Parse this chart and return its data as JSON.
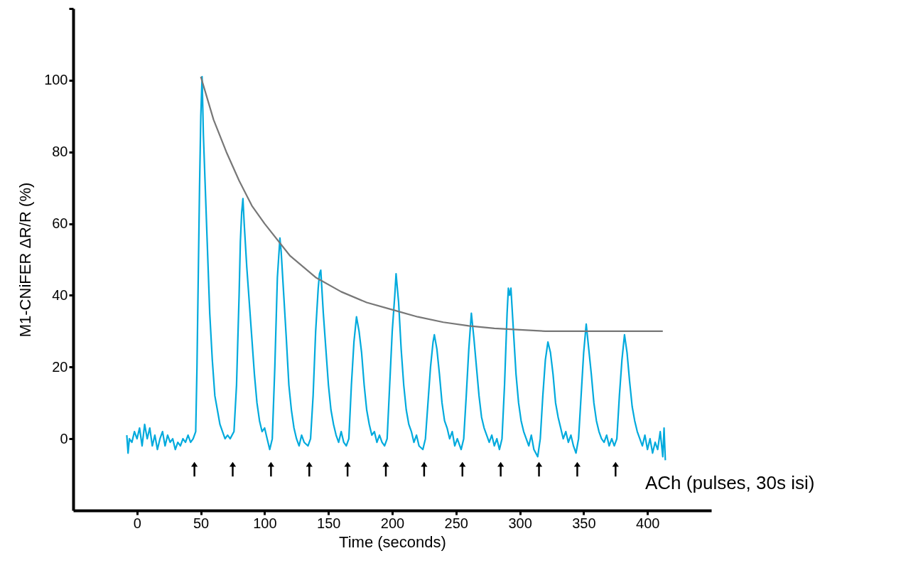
{
  "chart_data": {
    "type": "line",
    "xlabel": "Time (seconds)",
    "ylabel": "M1-CNiFER ΔR/R (%)",
    "xlim": [
      -50,
      450
    ],
    "ylim": [
      -20,
      120
    ],
    "xticks": [
      0,
      50,
      100,
      150,
      200,
      250,
      300,
      350,
      400
    ],
    "yticks": [
      0,
      20,
      40,
      60,
      80,
      100,
      {
        "value": 120,
        "label": null
      }
    ],
    "grid": false,
    "annotations": [
      "ACh (pulses, 30s isi)"
    ],
    "series": [
      {
        "color": "#00aadd",
        "marker": "none",
        "line_style": "solid",
        "x": [
          -8,
          -7,
          -6,
          -4,
          -2,
          0,
          2,
          4,
          6,
          8,
          10,
          12,
          14,
          16,
          18,
          20,
          22,
          24,
          26,
          28,
          30,
          32,
          34,
          36,
          38,
          40,
          42,
          44,
          46,
          47,
          49,
          50,
          51,
          52,
          53,
          55,
          57,
          59,
          61,
          63,
          65,
          67,
          69,
          71,
          73,
          76,
          78,
          80,
          81,
          82,
          83,
          84,
          86,
          88,
          90,
          92,
          94,
          96,
          98,
          100,
          102,
          104,
          106,
          108,
          110,
          112,
          113,
          115,
          117,
          119,
          121,
          123,
          125,
          127,
          129,
          131,
          134,
          136,
          138,
          140,
          142,
          143,
          144,
          146,
          148,
          150,
          152,
          154,
          156,
          158,
          160,
          162,
          164,
          166,
          168,
          170,
          172,
          174,
          176,
          178,
          180,
          182,
          184,
          186,
          188,
          190,
          192,
          194,
          196,
          198,
          200,
          202,
          203,
          205,
          207,
          209,
          211,
          213,
          215,
          217,
          219,
          221,
          224,
          226,
          228,
          230,
          232,
          233,
          235,
          237,
          239,
          241,
          243,
          245,
          247,
          249,
          251,
          254,
          256,
          258,
          260,
          262,
          264,
          266,
          268,
          270,
          272,
          274,
          276,
          278,
          280,
          282,
          284,
          286,
          288,
          290,
          291,
          292,
          293,
          295,
          297,
          299,
          301,
          303,
          305,
          307,
          309,
          311,
          314,
          316,
          318,
          320,
          322,
          324,
          326,
          328,
          330,
          332,
          334,
          336,
          338,
          340,
          342,
          344,
          346,
          348,
          350,
          352,
          354,
          356,
          358,
          360,
          362,
          364,
          366,
          368,
          370,
          372,
          374,
          376,
          378,
          380,
          382,
          384,
          386,
          388,
          390,
          392,
          394,
          396,
          398,
          400,
          402,
          404,
          406,
          408,
          410,
          412,
          413,
          414
        ],
        "values": [
          1,
          -4,
          0,
          -1,
          2,
          0,
          3,
          -2,
          4,
          0,
          3,
          -2,
          1,
          -3,
          0,
          2,
          -2,
          1,
          -1,
          0,
          -3,
          -1,
          -2,
          0,
          -1,
          1,
          -1,
          0,
          2,
          20,
          70,
          90,
          101,
          85,
          75,
          55,
          35,
          22,
          12,
          8,
          4,
          2,
          0,
          1,
          0,
          2,
          15,
          40,
          55,
          63,
          67,
          60,
          48,
          38,
          28,
          18,
          10,
          5,
          2,
          3,
          0,
          -3,
          0,
          20,
          45,
          56,
          52,
          40,
          28,
          15,
          8,
          3,
          0,
          -2,
          1,
          -1,
          -2,
          0,
          12,
          30,
          42,
          46,
          47,
          35,
          25,
          15,
          8,
          4,
          1,
          -1,
          2,
          -1,
          -2,
          0,
          15,
          27,
          34,
          30,
          24,
          15,
          8,
          4,
          1,
          2,
          -1,
          1,
          -1,
          -2,
          0,
          15,
          30,
          40,
          46,
          38,
          25,
          15,
          8,
          4,
          2,
          -1,
          1,
          -2,
          -3,
          0,
          10,
          20,
          27,
          29,
          25,
          18,
          10,
          5,
          3,
          0,
          2,
          -2,
          0,
          -3,
          0,
          12,
          25,
          35,
          28,
          20,
          12,
          6,
          3,
          1,
          -1,
          1,
          -2,
          0,
          -3,
          0,
          15,
          35,
          42,
          40,
          42,
          30,
          18,
          10,
          5,
          2,
          0,
          -2,
          1,
          -3,
          -5,
          0,
          12,
          22,
          27,
          24,
          18,
          10,
          6,
          3,
          0,
          2,
          -1,
          1,
          -2,
          -4,
          0,
          12,
          24,
          32,
          25,
          18,
          10,
          5,
          2,
          0,
          -1,
          1,
          -2,
          0,
          -2,
          0,
          12,
          22,
          29,
          24,
          16,
          9,
          5,
          2,
          0,
          -2,
          1,
          -3,
          0,
          -4,
          -1,
          -3,
          2,
          -5,
          3,
          -6
        ]
      },
      {
        "color": "#777777",
        "marker": "none",
        "line_style": "solid",
        "x": [
          50,
          60,
          70,
          80,
          90,
          100,
          120,
          140,
          160,
          180,
          200,
          220,
          240,
          260,
          280,
          300,
          320,
          340,
          380,
          412
        ],
        "values": [
          101,
          89,
          80,
          72,
          65,
          60,
          51,
          45,
          41,
          38,
          36,
          34,
          32.5,
          31.5,
          30.8,
          30.4,
          30,
          30,
          30,
          30
        ]
      },
      {
        "type": "scatter",
        "color": "#000000",
        "marker": "triangle",
        "x": [
          45,
          75,
          105,
          135,
          165,
          195,
          225,
          255,
          285,
          315,
          345,
          375
        ],
        "values": [
          -8.5,
          -8.5,
          -8.5,
          -8.5,
          -8.5,
          -8.5,
          -8.5,
          -8.5,
          -8.5,
          -8.5,
          -8.5,
          -8.5
        ]
      }
    ]
  }
}
